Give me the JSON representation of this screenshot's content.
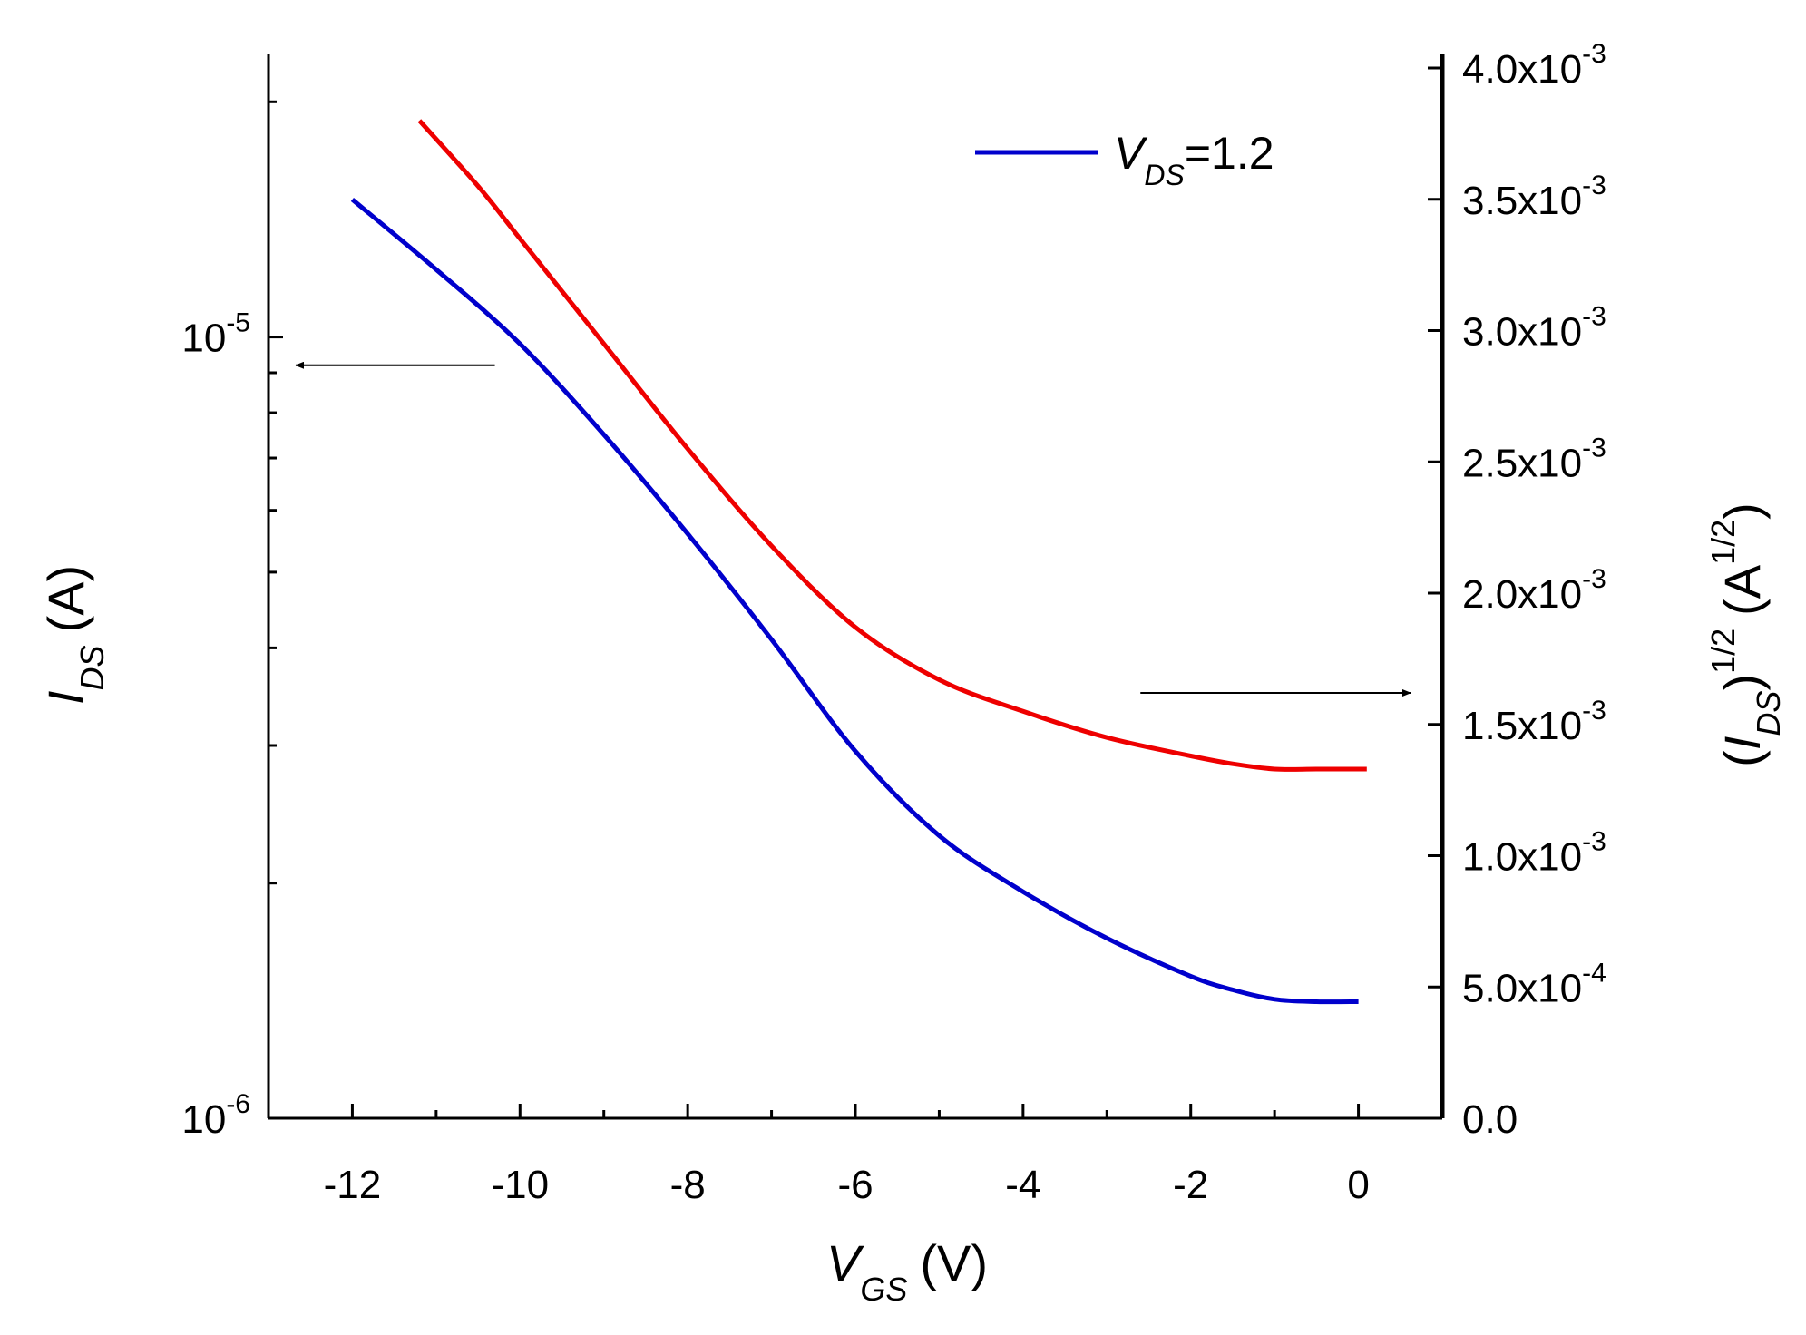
{
  "chart_data": {
    "type": "line",
    "x": {
      "label": "V",
      "label_sub": "GS",
      "label_unit": "(V)",
      "range": [
        -13,
        1
      ],
      "ticks": [
        -12,
        -10,
        -8,
        -6,
        -4,
        -2,
        0
      ],
      "tick_labels": [
        "-12",
        "-10",
        "-8",
        "-6",
        "-4",
        "-2",
        "0"
      ]
    },
    "y_left": {
      "label": "I",
      "label_sub": "DS",
      "label_unit": "(A)",
      "scale": "log",
      "range": [
        1e-06,
        2.3e-05
      ],
      "tick_labels": [
        {
          "value": 1e-05,
          "base": "10",
          "exp": "-5"
        },
        {
          "value": 1e-06,
          "base": "10",
          "exp": "-6"
        }
      ]
    },
    "y_right": {
      "label_open": "(",
      "label_I": "I",
      "label_sub": "DS",
      "label_close": ")",
      "label_exp": "1/2",
      "label_unit_open": "(A",
      "label_unit_exp": "1/2",
      "label_unit_close": ")",
      "scale": "linear",
      "range": [
        0,
        0.004
      ],
      "ticks": [
        0,
        0.0005,
        0.001,
        0.0015,
        0.002,
        0.0025,
        0.003,
        0.0035,
        0.004
      ],
      "tick_labels": [
        {
          "mantissa": "0.0",
          "exp": ""
        },
        {
          "mantissa": "5.0x10",
          "exp": "-4"
        },
        {
          "mantissa": "1.0x10",
          "exp": "-3"
        },
        {
          "mantissa": "1.5x10",
          "exp": "-3"
        },
        {
          "mantissa": "2.0x10",
          "exp": "-3"
        },
        {
          "mantissa": "2.5x10",
          "exp": "-3"
        },
        {
          "mantissa": "3.0x10",
          "exp": "-3"
        },
        {
          "mantissa": "3.5x10",
          "exp": "-3"
        },
        {
          "mantissa": "4.0x10",
          "exp": "-3"
        }
      ]
    },
    "legend": {
      "position": "top-right",
      "entries": [
        {
          "label_v": "V",
          "label_sub": "DS",
          "label_rest": "=1.2",
          "color": "#0000cc"
        }
      ]
    },
    "series": [
      {
        "name": "I_DS (log, left axis)",
        "axis": "left",
        "color": "#0000cc",
        "x": [
          -12,
          -11,
          -10,
          -9,
          -8,
          -7,
          -6,
          -5,
          -4,
          -3,
          -2,
          -1.5,
          -1,
          -0.5,
          0
        ],
        "y": [
          1.5e-05,
          1.22e-05,
          9.8e-06,
          7.5e-06,
          5.6e-06,
          4.1e-06,
          2.95e-06,
          2.3e-06,
          1.95e-06,
          1.7e-06,
          1.52e-06,
          1.46e-06,
          1.42e-06,
          1.41e-06,
          1.41e-06
        ]
      },
      {
        "name": "(I_DS)^1/2 (linear, right axis)",
        "axis": "right",
        "color": "#ee0000",
        "x": [
          -11.2,
          -10.5,
          -10,
          -9,
          -8,
          -7,
          -6,
          -5,
          -4,
          -3,
          -2,
          -1.5,
          -1,
          -0.5,
          0,
          0.1
        ],
        "y": [
          0.0038,
          0.00355,
          0.00335,
          0.00295,
          0.00255,
          0.00218,
          0.00187,
          0.00167,
          0.00155,
          0.00145,
          0.00138,
          0.00135,
          0.00133,
          0.00133,
          0.00133,
          0.00133
        ]
      }
    ],
    "annotations": [
      {
        "type": "arrow",
        "direction": "left",
        "points_to": "left axis",
        "from_x": -10.3,
        "at_y_left": 9.2e-06
      },
      {
        "type": "arrow",
        "direction": "right",
        "points_to": "right axis",
        "from_x": -2.6,
        "at_y_right": 0.00162
      }
    ]
  }
}
